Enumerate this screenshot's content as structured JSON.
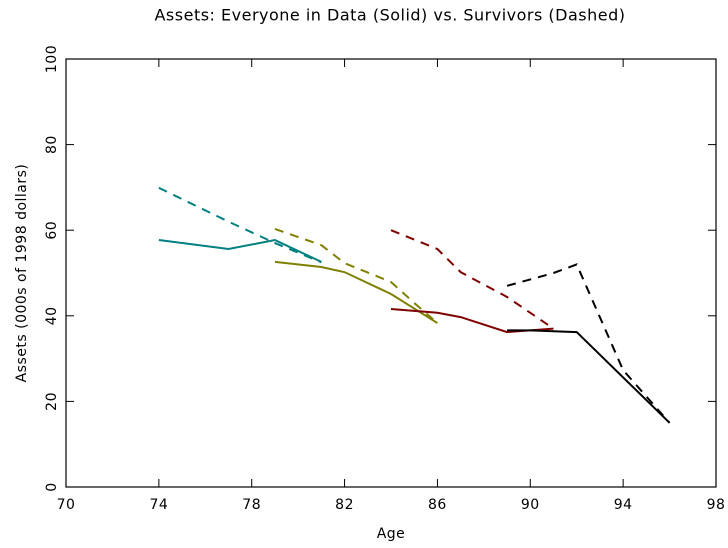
{
  "chart_data": {
    "type": "line",
    "title": "Assets:  Everyone in Data (Solid) vs. Survivors (Dashed)",
    "x_label": "Age",
    "y_label": "Assets (000s of 1998 dollars)",
    "xlim": [
      70,
      98
    ],
    "xticks": [
      70,
      74,
      78,
      82,
      86,
      90,
      94,
      98
    ],
    "ylim": [
      0,
      100
    ],
    "yticks": [
      0,
      20,
      40,
      60,
      80,
      100
    ],
    "series": [
      {
        "color": "#008080",
        "dashed": false,
        "x": [
          74,
          77,
          79,
          81
        ],
        "values": [
          57.7,
          55.6,
          57.7,
          52.6
        ]
      },
      {
        "color": "#008080",
        "dashed": true,
        "x": [
          74,
          77,
          79,
          81
        ],
        "values": [
          69.9,
          62,
          57,
          52.5
        ]
      },
      {
        "color": "#808000",
        "dashed": false,
        "x": [
          79,
          81,
          82,
          84,
          86
        ],
        "values": [
          52.6,
          51.4,
          50.2,
          45.1,
          38.3
        ]
      },
      {
        "color": "#808000",
        "dashed": true,
        "x": [
          79,
          81,
          82,
          84,
          85,
          86
        ],
        "values": [
          60.3,
          56.5,
          52.3,
          47.9,
          43,
          38.3
        ]
      },
      {
        "color": "#800000",
        "dashed": false,
        "x": [
          84,
          86,
          87,
          89,
          91
        ],
        "values": [
          41.6,
          40.7,
          39.7,
          36.2,
          37
        ]
      },
      {
        "color": "#800000",
        "dashed": true,
        "x": [
          84,
          86,
          87,
          89,
          91
        ],
        "values": [
          60,
          55.6,
          50.2,
          44.4,
          37
        ]
      },
      {
        "color": "#000000",
        "dashed": false,
        "x": [
          89,
          90,
          92,
          96
        ],
        "values": [
          36.6,
          36.6,
          36.2,
          15
        ]
      },
      {
        "color": "#000000",
        "dashed": true,
        "x": [
          89,
          90,
          91,
          92,
          94,
          96
        ],
        "values": [
          47,
          48.5,
          50,
          52,
          27.3,
          15
        ]
      }
    ]
  }
}
